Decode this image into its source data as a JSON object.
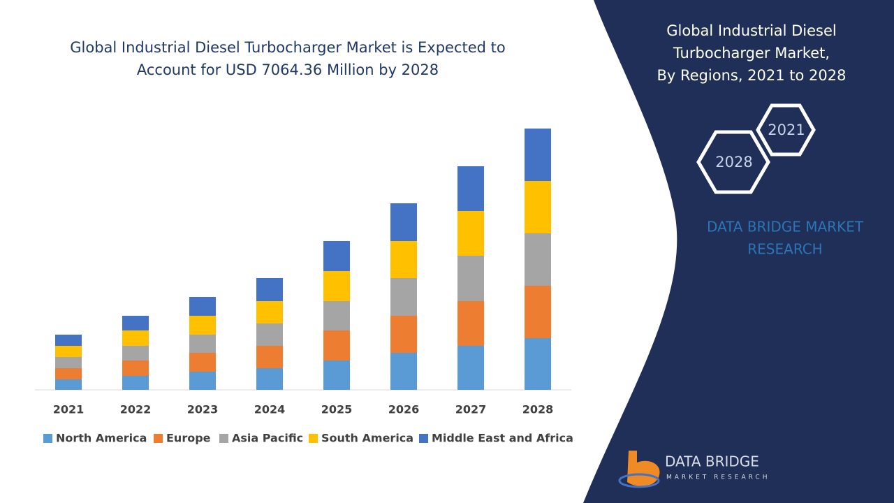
{
  "chart_data": {
    "type": "stacked-bar",
    "title": "Global Industrial Diesel Turbocharger Market is Expected to Account for USD 7064.36 Million by 2028",
    "categories": [
      "2021",
      "2022",
      "2023",
      "2024",
      "2025",
      "2026",
      "2027",
      "2028"
    ],
    "series": [
      {
        "name": "North America",
        "color": "#5b9bd5",
        "values": [
          15,
          20,
          26,
          31,
          42,
          53,
          63,
          74
        ]
      },
      {
        "name": "Europe",
        "color": "#ed7d31",
        "values": [
          16,
          22,
          27,
          32,
          43,
          53,
          64,
          75
        ]
      },
      {
        "name": "Asia Pacific",
        "color": "#a5a5a5",
        "values": [
          16,
          21,
          26,
          32,
          42,
          54,
          65,
          75
        ]
      },
      {
        "name": "South America",
        "color": "#ffc000",
        "values": [
          16,
          22,
          27,
          32,
          43,
          53,
          64,
          75
        ]
      },
      {
        "name": "Middle East and Africa",
        "color": "#4472c4",
        "values": [
          16,
          21,
          27,
          33,
          43,
          54,
          64,
          75
        ]
      }
    ],
    "ylim": [
      0,
      400
    ],
    "legend": "bottom"
  },
  "panel": {
    "title_lines": [
      "Global Industrial Diesel",
      "Turbocharger Market,",
      "By Regions,  2021 to 2028"
    ],
    "hex_labels": [
      "2021",
      "2028"
    ],
    "brand_lines": [
      "DATA BRIDGE MARKET",
      "RESEARCH"
    ],
    "logo_name": "DATA BRIDGE",
    "logo_tagline": "MARKET RESEARCH"
  }
}
